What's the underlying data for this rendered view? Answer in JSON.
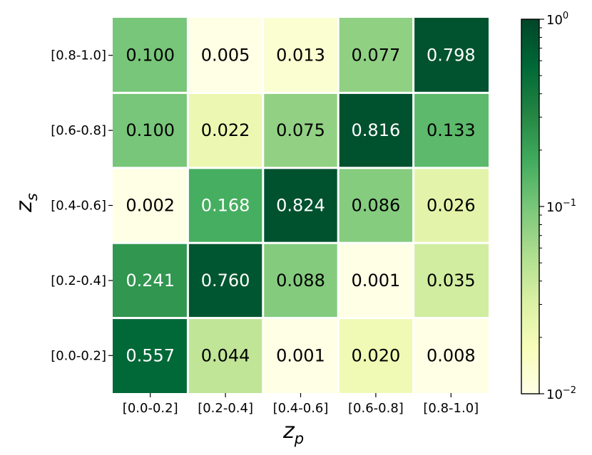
{
  "chart_data": {
    "type": "heatmap",
    "title": "",
    "xlabel": "z",
    "xlabel_sub": "p",
    "ylabel": "z",
    "ylabel_sub": "s",
    "x_categories": [
      "[0.0-0.2]",
      "[0.2-0.4]",
      "[0.4-0.6]",
      "[0.6-0.8]",
      "[0.8-1.0]"
    ],
    "y_categories": [
      "[0.8-1.0]",
      "[0.6-0.8]",
      "[0.4-0.6]",
      "[0.2-0.4]",
      "[0.0-0.2]"
    ],
    "values": [
      [
        0.1,
        0.005,
        0.013,
        0.077,
        0.798
      ],
      [
        0.1,
        0.022,
        0.075,
        0.816,
        0.133
      ],
      [
        0.002,
        0.168,
        0.824,
        0.086,
        0.026
      ],
      [
        0.241,
        0.76,
        0.088,
        0.001,
        0.035
      ],
      [
        0.557,
        0.044,
        0.001,
        0.02,
        0.008
      ]
    ],
    "value_labels": [
      [
        "0.100",
        "0.005",
        "0.013",
        "0.077",
        "0.798"
      ],
      [
        "0.100",
        "0.022",
        "0.075",
        "0.816",
        "0.133"
      ],
      [
        "0.002",
        "0.168",
        "0.824",
        "0.086",
        "0.026"
      ],
      [
        "0.241",
        "0.760",
        "0.088",
        "0.001",
        "0.035"
      ],
      [
        "0.557",
        "0.044",
        "0.001",
        "0.020",
        "0.008"
      ]
    ],
    "colorbar": {
      "scale": "log",
      "range": [
        0.01,
        1
      ],
      "ticks": [
        {
          "value": 1,
          "base": "10",
          "exp": "0"
        },
        {
          "value": 0.1,
          "base": "10",
          "exp": "−1"
        },
        {
          "value": 0.01,
          "base": "10",
          "exp": "−2"
        }
      ],
      "colormap": "Greens-yellow",
      "colors": [
        "#ffffe5",
        "#f7fcb9",
        "#d9f0a3",
        "#addd8e",
        "#78c679",
        "#41ab5d",
        "#238443",
        "#006837",
        "#004529"
      ]
    },
    "grid": false
  }
}
